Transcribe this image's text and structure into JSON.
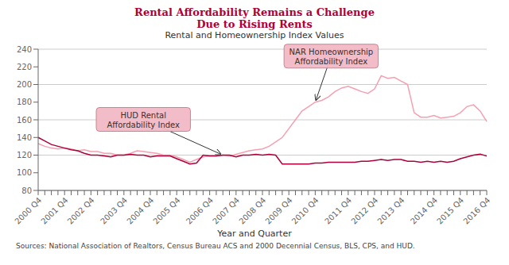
{
  "chart_data": {
    "type": "line",
    "title": "Rental Affordability Remains a Challenge\nDue to Rising Rents",
    "subtitle": "Rental and Homeownership Index Values",
    "x_label": "Year and Quarter",
    "source": "Sources: National Association of Realtors, Census Bureau ACS and 2000 Decennial Census, BLS, CPS, and HUD.",
    "categories": [
      "2000 Q4",
      null,
      null,
      null,
      "2001 Q4",
      null,
      null,
      null,
      "2002 Q4",
      null,
      null,
      null,
      null,
      "2003 Q4",
      null,
      null,
      null,
      "2004 Q4",
      null,
      null,
      null,
      "2005 Q4",
      null,
      null,
      null,
      null,
      "2006 Q4",
      null,
      null,
      null,
      "2007 Q4",
      null,
      null,
      null,
      "2008 Q4",
      null,
      null,
      null,
      "2009 Q4",
      null,
      null,
      null,
      "2010 Q4",
      null,
      null,
      null,
      null,
      "2011 Q4",
      null,
      null,
      null,
      "2012 Q4",
      null,
      null,
      null,
      "2013 Q4",
      null,
      null,
      null,
      null,
      "2014 Q4",
      null,
      null,
      null,
      "2015 Q4",
      null,
      null,
      null,
      "2016 Q4"
    ],
    "series": [
      {
        "color": "#F4A0B0",
        "values": [
          133,
          130,
          128,
          127,
          128,
          127,
          125,
          126,
          124,
          124,
          122,
          122,
          120,
          120,
          122,
          125,
          124,
          123,
          122,
          120,
          120,
          118,
          115,
          112,
          115,
          118,
          119,
          119,
          120,
          119,
          121,
          123,
          125,
          126,
          127,
          130,
          135,
          140,
          150,
          160,
          170,
          175,
          180,
          182,
          186,
          192,
          196,
          198,
          195,
          192,
          190,
          195,
          210,
          207,
          208,
          204,
          200,
          168,
          163,
          163,
          165,
          162,
          163,
          164,
          168,
          175,
          177,
          170,
          158
        ]
      },
      {
        "color": "#B0003A",
        "values": [
          140,
          136,
          132,
          130,
          128,
          126,
          125,
          122,
          120,
          120,
          119,
          118,
          120,
          120,
          121,
          120,
          120,
          118,
          119,
          119,
          119,
          116,
          113,
          110,
          111,
          120,
          119,
          119,
          120,
          120,
          118,
          120,
          120,
          121,
          120,
          121,
          120,
          110,
          110,
          110,
          110,
          110,
          111,
          111,
          112,
          112,
          112,
          112,
          112,
          113,
          113,
          114,
          115,
          114,
          115,
          115,
          113,
          113,
          112,
          113,
          112,
          113,
          112,
          113,
          116,
          118,
          120,
          121,
          119
        ]
      }
    ],
    "annotations": [
      {
        "text": "HUD Rental\nAffordability Index",
        "x": 28,
        "y": 120
      },
      {
        "text": "NAR Homeownership\nAffordability Index",
        "x": 42,
        "y": 180
      }
    ],
    "ylim": [
      80,
      240
    ],
    "yticks": [
      80,
      100,
      120,
      140,
      160,
      180,
      200,
      220,
      240
    ],
    "grid": true
  }
}
